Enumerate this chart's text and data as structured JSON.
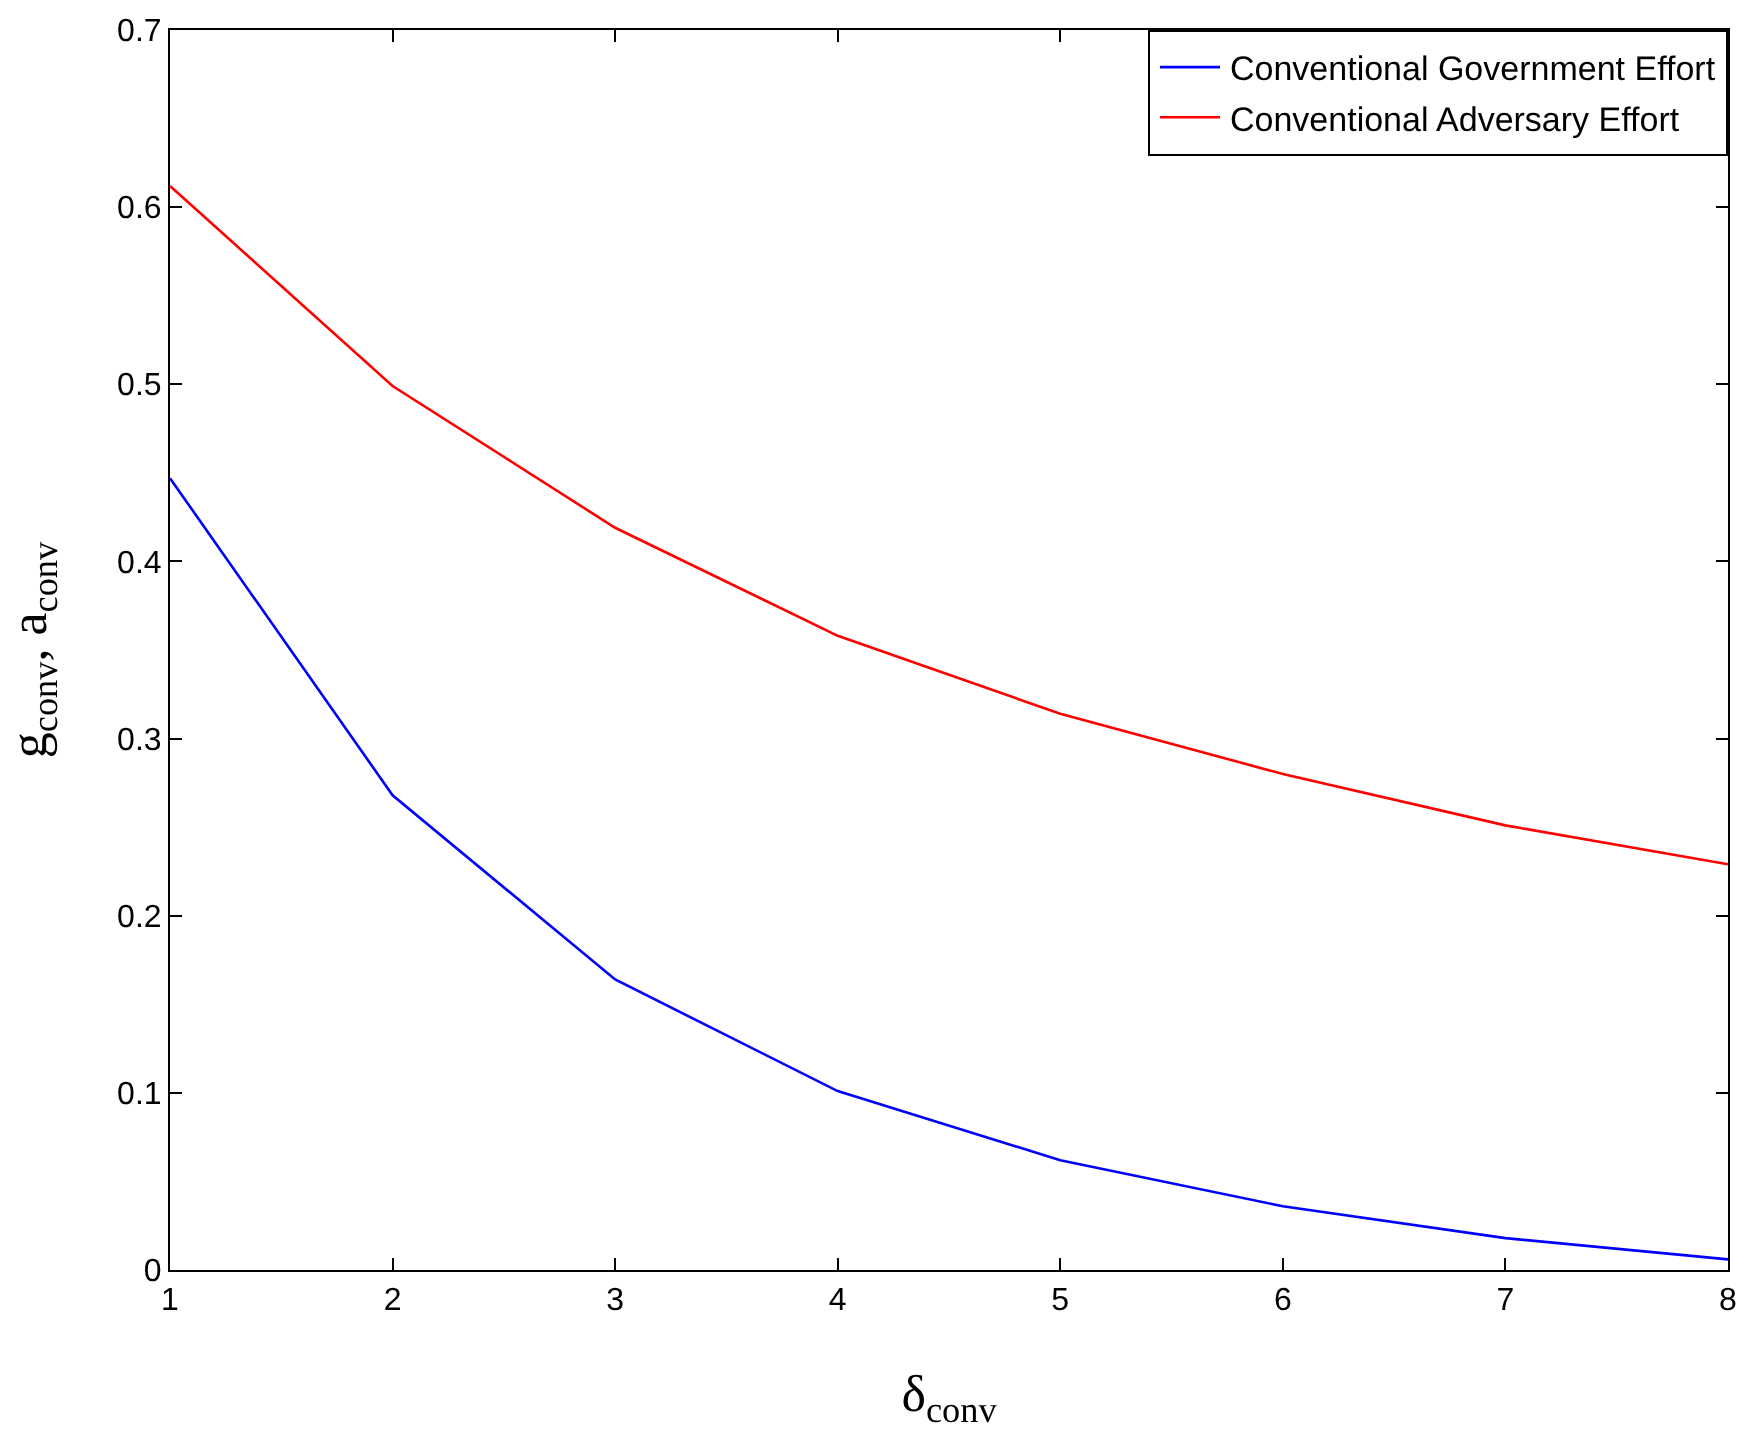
{
  "chart_data": {
    "type": "line",
    "xlabel": "δ$_{conv}$",
    "ylabel": "g$_{conv}$, a$_{conv}$",
    "x": [
      1,
      2,
      3,
      4,
      5,
      6,
      7,
      8
    ],
    "series": [
      {
        "name": "Conventional Government Effort",
        "color": "#0000ff",
        "values": [
          0.447,
          0.268,
          0.164,
          0.101,
          0.062,
          0.036,
          0.018,
          0.006
        ]
      },
      {
        "name": "Conventional Adversary Effort",
        "color": "#ff0000",
        "values": [
          0.612,
          0.499,
          0.419,
          0.358,
          0.314,
          0.28,
          0.251,
          0.229
        ]
      }
    ],
    "xlim": [
      1,
      8
    ],
    "xticks": [
      1,
      2,
      3,
      4,
      5,
      6,
      7,
      8
    ],
    "ylim": [
      0,
      0.7
    ],
    "yticks": [
      0,
      0.1,
      0.2,
      0.3,
      0.4,
      0.5,
      0.6,
      0.7
    ],
    "grid": false,
    "legend": "top right",
    "marker": "none",
    "line_style": "solid"
  }
}
